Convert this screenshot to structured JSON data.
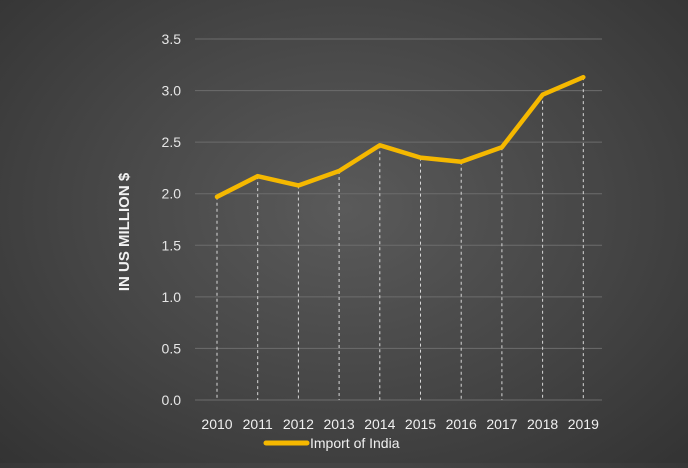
{
  "chart_data": {
    "type": "line",
    "title": "",
    "xlabel": "",
    "ylabel": "IN US MILLION $",
    "ylim": [
      0,
      3.5
    ],
    "y_ticks": [
      "0.0",
      "0.5",
      "1.0",
      "1.5",
      "2.0",
      "2.5",
      "3.0",
      "3.5"
    ],
    "categories": [
      "2010",
      "2011",
      "2012",
      "2013",
      "2014",
      "2015",
      "2016",
      "2017",
      "2018",
      "2019"
    ],
    "series": [
      {
        "name": "Import of India",
        "values": [
          1.97,
          2.17,
          2.08,
          2.22,
          2.47,
          2.35,
          2.31,
          2.45,
          2.96,
          3.13
        ],
        "color": "#F5B800"
      }
    ],
    "grid": true,
    "drop_lines": true,
    "legend": "bottom"
  }
}
